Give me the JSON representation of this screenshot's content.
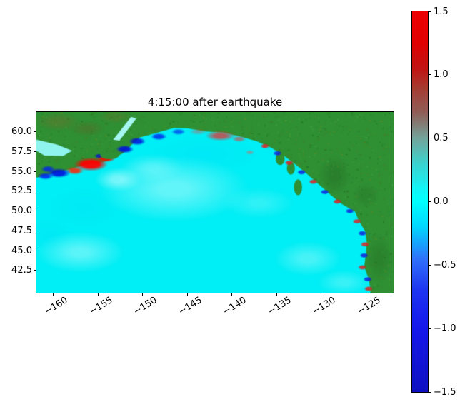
{
  "chart_data": {
    "type": "heatmap",
    "title": "4:15:00 after earthquake",
    "xlabel": "",
    "ylabel": "",
    "xlim": [
      -161.9,
      -121.9
    ],
    "ylim": [
      39.7,
      62.5
    ],
    "x_ticks": [
      -160,
      -155,
      -150,
      -145,
      -140,
      -135,
      -130,
      -125
    ],
    "x_tick_labels": [
      "−160",
      "−155",
      "−150",
      "−145",
      "−140",
      "−135",
      "−130",
      "−125"
    ],
    "x_tick_rotation": 32,
    "y_ticks": [
      60.0,
      57.5,
      55.0,
      52.5,
      50.0,
      47.5,
      45.0,
      42.5
    ],
    "y_tick_labels": [
      "60.0",
      "57.5",
      "55.0",
      "52.5",
      "50.0",
      "47.5",
      "45.0",
      "42.5"
    ],
    "grid": false,
    "legend": null,
    "colorbar": {
      "min": -1.5,
      "max": 1.5,
      "ticks": [
        1.5,
        1.0,
        0.5,
        0.0,
        -0.5,
        -1.0,
        -1.5
      ],
      "tick_labels": [
        "1.5",
        "1.0",
        "0.5",
        "0.0",
        "−0.5",
        "−1.0",
        "−1.5"
      ],
      "gradient_stops": [
        {
          "frac": 0.0,
          "color": "#ec0000"
        },
        {
          "frac": 0.083,
          "color": "#e00000"
        },
        {
          "frac": 0.15,
          "color": "#c01414"
        },
        {
          "frac": 0.2,
          "color": "#a63a32"
        },
        {
          "frac": 0.267,
          "color": "#8f5f57"
        },
        {
          "frac": 0.333,
          "color": "#74a39b"
        },
        {
          "frac": 0.4,
          "color": "#3cd2cd"
        },
        {
          "frac": 0.467,
          "color": "#12f4f8"
        },
        {
          "frac": 0.5,
          "color": "#00ffff"
        },
        {
          "frac": 0.567,
          "color": "#00d5ff"
        },
        {
          "frac": 0.65,
          "color": "#2e72fa"
        },
        {
          "frac": 0.733,
          "color": "#1f33f2"
        },
        {
          "frac": 0.833,
          "color": "#1518ea"
        },
        {
          "frac": 1.0,
          "color": "#0e10c4"
        }
      ]
    },
    "colors": {
      "land": "#2f8f33",
      "ocean": "#00eef5",
      "land_noise": [
        "#1d6b1d",
        "#3aa33a",
        "#6b8e23",
        "#256f27",
        "#45ad45",
        "#577a1e"
      ],
      "figure_bg": "#ffffff"
    },
    "map": {
      "ocean_polygon": [
        [
          -161.9,
          54.2
        ],
        [
          -159.5,
          54.9
        ],
        [
          -158.0,
          55.3
        ],
        [
          -156.3,
          55.9
        ],
        [
          -155.0,
          56.0
        ],
        [
          -153.6,
          56.5
        ],
        [
          -152.2,
          57.3
        ],
        [
          -151.2,
          58.4
        ],
        [
          -150.3,
          59.3
        ],
        [
          -148.5,
          59.85
        ],
        [
          -146.5,
          60.5
        ],
        [
          -145.0,
          60.45
        ],
        [
          -143.0,
          60.05
        ],
        [
          -141.0,
          59.9
        ],
        [
          -139.0,
          59.4
        ],
        [
          -137.2,
          58.8
        ],
        [
          -135.6,
          58.0
        ],
        [
          -134.2,
          57.0
        ],
        [
          -132.8,
          55.8
        ],
        [
          -131.5,
          54.6
        ],
        [
          -130.3,
          53.4
        ],
        [
          -129.0,
          52.1
        ],
        [
          -127.7,
          50.9
        ],
        [
          -126.2,
          49.9
        ],
        [
          -125.8,
          48.8
        ],
        [
          -125.1,
          47.5
        ],
        [
          -124.9,
          46.0
        ],
        [
          -125.0,
          44.5
        ],
        [
          -125.2,
          43.0
        ],
        [
          -124.7,
          41.5
        ],
        [
          -124.5,
          40.2
        ],
        [
          -124.5,
          39.7
        ],
        [
          -161.9,
          39.7
        ]
      ],
      "water_bodies": [
        {
          "name": "bristol-bay",
          "color": "#8ff3ee",
          "polygon": [
            [
              -161.9,
              59.0
            ],
            [
              -159.6,
              58.4
            ],
            [
              -157.9,
              57.6
            ],
            [
              -158.9,
              56.95
            ],
            [
              -161.0,
              57.0
            ],
            [
              -161.9,
              57.6
            ]
          ]
        },
        {
          "name": "cook-inlet",
          "color": "#a5f5f0",
          "polygon": [
            [
              -153.3,
              59.0
            ],
            [
              -151.3,
              61.9
            ],
            [
              -150.7,
              61.7
            ],
            [
              -152.6,
              58.9
            ]
          ]
        }
      ],
      "land_shading": [
        [
          -159.5,
          61.3,
          2.5,
          1.2,
          "#7a6a2a",
          0.35,
          0.3
        ],
        [
          -156.2,
          60.4,
          2.0,
          1.0,
          "#6b5b22",
          0.3,
          0.3
        ],
        [
          -153.0,
          61.9,
          2.0,
          0.9,
          "#7a6a2a",
          0.25,
          0.3
        ],
        [
          -128.5,
          54.5,
          1.8,
          2.5,
          "#1c5c1c",
          0.3,
          0.25
        ],
        [
          -123.5,
          44.0,
          1.6,
          3.0,
          "#1c5c1c",
          0.25,
          0.25
        ],
        [
          -125.0,
          52.0,
          1.5,
          1.5,
          "#246d24",
          0.3,
          0.3
        ]
      ],
      "wave_patches": [
        [
          -146.5,
          52.8,
          8.5,
          4.2,
          "#ffffff",
          0.38,
          0.2
        ],
        [
          -157.0,
          44.8,
          5.0,
          2.6,
          "#ffffff",
          0.35,
          0.2
        ],
        [
          -131.5,
          44.0,
          3.8,
          2.2,
          "#ffffff",
          0.28,
          0.2
        ],
        [
          -127.5,
          41.0,
          3.0,
          1.6,
          "#ffffff",
          0.22,
          0.2
        ],
        [
          -149.0,
          55.5,
          3.5,
          1.8,
          "#ffffff",
          0.22,
          0.2
        ],
        [
          -137.0,
          51.0,
          4.0,
          2.0,
          "#ffffff",
          0.18,
          0.2
        ],
        [
          -152.8,
          54.0,
          2.6,
          1.5,
          "#ffffff",
          0.4,
          0.25
        ],
        [
          -143.0,
          57.2,
          6.0,
          2.2,
          "#00d0ff",
          0.15,
          0.15
        ],
        [
          -156.5,
          50.5,
          4.0,
          2.4,
          "#00d0ff",
          0.12,
          0.15
        ],
        [
          -160.5,
          47.0,
          2.5,
          2.0,
          "#00d0ff",
          0.12,
          0.15
        ],
        [
          -155.8,
          55.9,
          1.9,
          0.85,
          "#ff0000",
          0.95,
          0.5
        ],
        [
          -154.1,
          56.7,
          1.1,
          0.55,
          "#ee1100",
          0.9,
          0.5
        ],
        [
          -157.6,
          55.1,
          1.0,
          0.5,
          "#ff2200",
          0.85,
          0.45
        ],
        [
          -159.4,
          54.8,
          1.3,
          0.6,
          "#0011dd",
          0.9,
          0.5
        ],
        [
          -160.6,
          55.3,
          0.8,
          0.45,
          "#0022ee",
          0.8,
          0.45
        ],
        [
          -160.9,
          54.4,
          0.9,
          0.45,
          "#0022ee",
          0.85,
          0.45
        ],
        [
          -154.9,
          56.95,
          0.5,
          0.3,
          "#0011cc",
          0.8,
          0.5
        ],
        [
          -152.0,
          57.8,
          1.0,
          0.5,
          "#0011dd",
          0.9,
          0.5
        ],
        [
          -150.6,
          58.8,
          0.95,
          0.5,
          "#0011dd",
          0.85,
          0.5
        ],
        [
          -148.2,
          59.4,
          0.9,
          0.45,
          "#0022ee",
          0.8,
          0.5
        ],
        [
          -146.0,
          60.0,
          0.8,
          0.4,
          "#0033ee",
          0.7,
          0.45
        ],
        [
          -141.3,
          59.5,
          1.7,
          0.65,
          "#e83030",
          0.75,
          0.4
        ],
        [
          -143.8,
          60.0,
          1.0,
          0.4,
          "#e05050",
          0.4,
          0.3
        ],
        [
          -139.2,
          59.1,
          0.8,
          0.4,
          "#e04040",
          0.6,
          0.4
        ],
        [
          -138.0,
          57.4,
          0.5,
          0.3,
          "#e06060",
          0.5,
          0.4
        ]
      ],
      "islands": [
        [
          -153.7,
          57.05,
          1.05,
          0.5
        ],
        [
          -132.6,
          53.0,
          0.45,
          1.0
        ],
        [
          -134.6,
          56.6,
          0.5,
          0.8
        ],
        [
          -133.4,
          55.4,
          0.45,
          0.8
        ]
      ],
      "coastal_dots": [
        [
          -136.3,
          58.2,
          "#dd2222"
        ],
        [
          -134.9,
          57.3,
          "#1122dd"
        ],
        [
          -133.6,
          56.1,
          "#dd2222"
        ],
        [
          -132.2,
          54.9,
          "#1122dd"
        ],
        [
          -130.9,
          53.7,
          "#dd2222"
        ],
        [
          -129.6,
          52.4,
          "#1122dd"
        ],
        [
          -128.2,
          51.2,
          "#dd2222"
        ],
        [
          -126.8,
          50.0,
          "#1122dd"
        ],
        [
          -126.0,
          48.7,
          "#dd2222"
        ],
        [
          -125.4,
          47.2,
          "#1122dd"
        ],
        [
          -125.1,
          45.8,
          "#dd2222"
        ],
        [
          -125.2,
          44.4,
          "#1122dd"
        ],
        [
          -125.4,
          42.9,
          "#dd2222"
        ],
        [
          -124.8,
          41.4,
          "#1122dd"
        ],
        [
          -124.7,
          40.2,
          "#dd2222"
        ]
      ]
    }
  }
}
